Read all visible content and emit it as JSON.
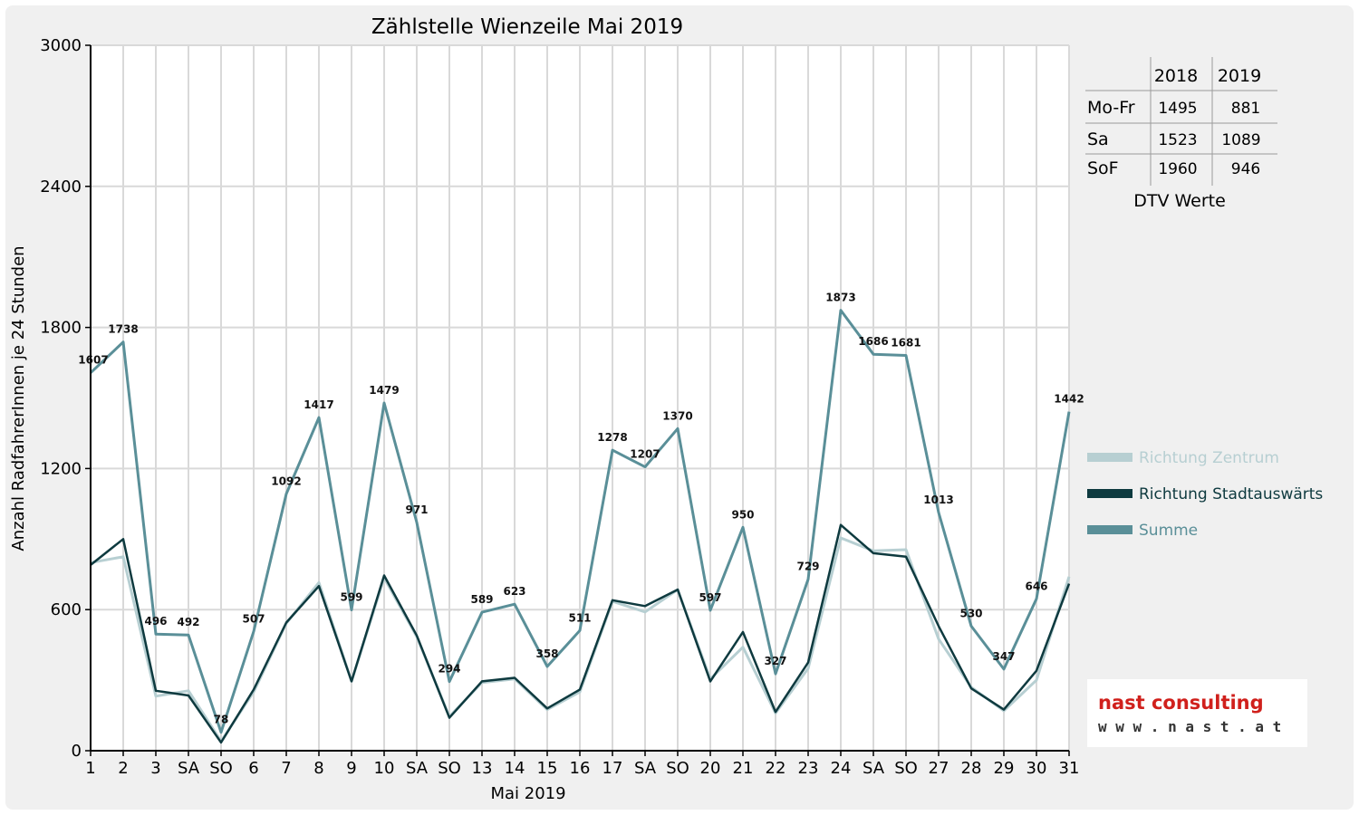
{
  "chart_data": {
    "type": "line",
    "title": "Zählstelle Wienzeile Mai 2019",
    "xlabel": "Mai 2019",
    "ylabel": "Anzahl RadfahrerInnen je 24 Stunden",
    "ylim": [
      0,
      3000
    ],
    "yticks": [
      "0",
      "600",
      "1200",
      "1800",
      "2400",
      "3000"
    ],
    "grid": true,
    "legend_position": "right",
    "categories": [
      "1",
      "2",
      "3",
      "SA",
      "SO",
      "6",
      "7",
      "8",
      "9",
      "10",
      "SA",
      "SO",
      "13",
      "14",
      "15",
      "16",
      "17",
      "SA",
      "SO",
      "20",
      "21",
      "22",
      "23",
      "24",
      "SA",
      "SO",
      "27",
      "28",
      "29",
      "30",
      "31"
    ],
    "red_categories": [
      0,
      4,
      11,
      18,
      25,
      29
    ],
    "series": [
      {
        "name": "Richtung Zentrum",
        "color": "#b7cfd2",
        "values": [
          800,
          825,
          232,
          255,
          40,
          250,
          542,
          715,
          295,
          735,
          485,
          145,
          290,
          305,
          175,
          250,
          635,
          590,
          685,
          305,
          440,
          160,
          350,
          905,
          850,
          855,
          475,
          270,
          170,
          300,
          740
        ]
      },
      {
        "name": "Richtung Stadtauswärts",
        "color": "#0e3a3f",
        "values": [
          790,
          900,
          255,
          235,
          35,
          260,
          545,
          700,
          295,
          745,
          490,
          140,
          295,
          310,
          180,
          260,
          640,
          615,
          685,
          295,
          505,
          165,
          375,
          960,
          840,
          825,
          530,
          265,
          175,
          340,
          710
        ]
      },
      {
        "name": "Summe",
        "color": "#5a8f98",
        "values": [
          1607,
          1738,
          496,
          492,
          78,
          507,
          1092,
          1417,
          599,
          1479,
          971,
          294,
          589,
          623,
          358,
          511,
          1278,
          1207,
          1370,
          597,
          950,
          327,
          729,
          1873,
          1686,
          1681,
          1013,
          530,
          347,
          646,
          1442
        ]
      }
    ],
    "data_labels": [
      "1607",
      "1738",
      "496",
      "492",
      "78",
      "507",
      "1092",
      "1417",
      "599",
      "1479",
      "971",
      "294",
      "589",
      "623",
      "358",
      "511",
      "1278",
      "1207",
      "1370",
      "597",
      "950",
      "327",
      "729",
      "1873",
      "1686",
      "1681",
      "1013",
      "530",
      "347",
      "646",
      "1442"
    ]
  },
  "dtv_table": {
    "headers": [
      "2018",
      "2019"
    ],
    "rows": [
      {
        "label": "Mo-Fr",
        "v2018": "1495",
        "v2019": "881"
      },
      {
        "label": "Sa",
        "v2018": "1523",
        "v2019": "1089"
      },
      {
        "label": "SoF",
        "v2018": "1960",
        "v2019": "946"
      }
    ],
    "caption": "DTV Werte"
  },
  "logo": {
    "line1": "nast consulting",
    "line2": "w w w . n a s t . a t"
  }
}
